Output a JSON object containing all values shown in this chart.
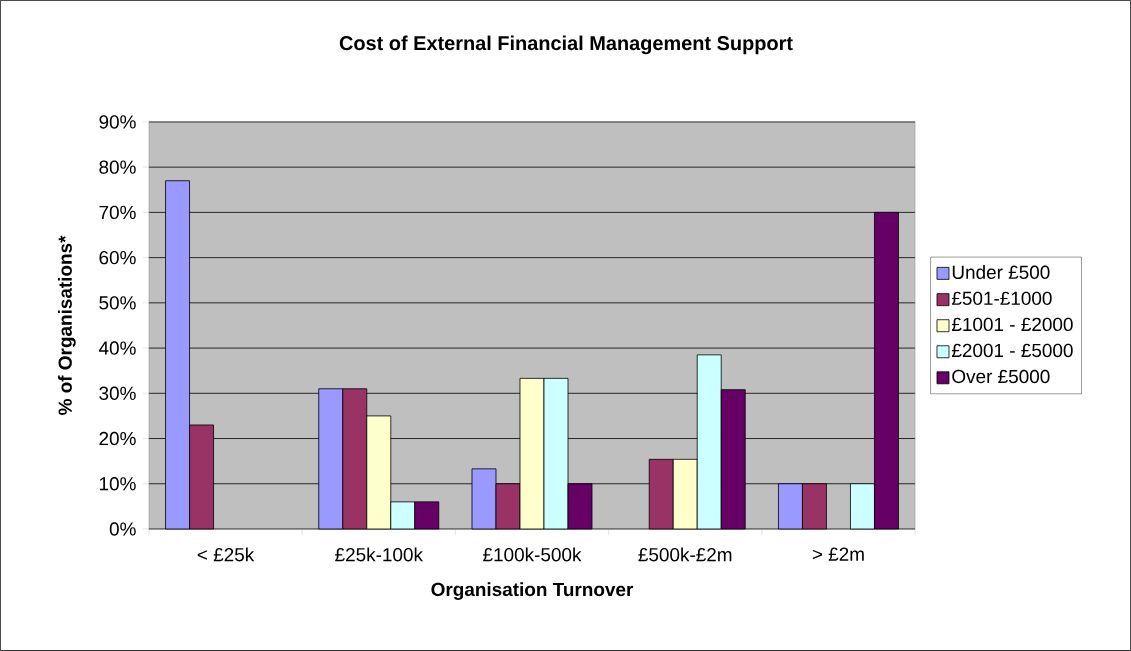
{
  "chart_data": {
    "type": "bar",
    "title": "Cost of External Financial Management Support",
    "xlabel": "Organisation Turnover",
    "ylabel": "% of Organisations*",
    "categories": [
      "< £25k",
      "£25k-100k",
      "£100k-500k",
      "£500k-£2m",
      "> £2m"
    ],
    "series": [
      {
        "name": "Under £500",
        "color": "#9999ff",
        "values": [
          77,
          31,
          13.3,
          null,
          10
        ]
      },
      {
        "name": "£501-£1000",
        "color": "#993366",
        "values": [
          23,
          31,
          10,
          15.4,
          10
        ]
      },
      {
        "name": "£1001 - £2000",
        "color": "#ffffcc",
        "values": [
          null,
          25,
          33.3,
          15.4,
          null
        ]
      },
      {
        "name": "£2001 - £5000",
        "color": "#ccffff",
        "values": [
          null,
          6,
          33.3,
          38.5,
          10
        ]
      },
      {
        "name": "Over £5000",
        "color": "#660066",
        "values": [
          null,
          6,
          10,
          30.8,
          70
        ]
      }
    ],
    "ylim": [
      0,
      90
    ],
    "yticks": [
      {
        "value": 0,
        "label": "0%"
      },
      {
        "value": 10,
        "label": "10%"
      },
      {
        "value": 20,
        "label": "20%"
      },
      {
        "value": 30,
        "label": "30%"
      },
      {
        "value": 40,
        "label": "40%"
      },
      {
        "value": 50,
        "label": "50%"
      },
      {
        "value": 60,
        "label": "60%"
      },
      {
        "value": 70,
        "label": "70%"
      },
      {
        "value": 80,
        "label": "80%"
      },
      {
        "value": 90,
        "label": "90%"
      }
    ],
    "grid": "y",
    "legend": "right"
  }
}
